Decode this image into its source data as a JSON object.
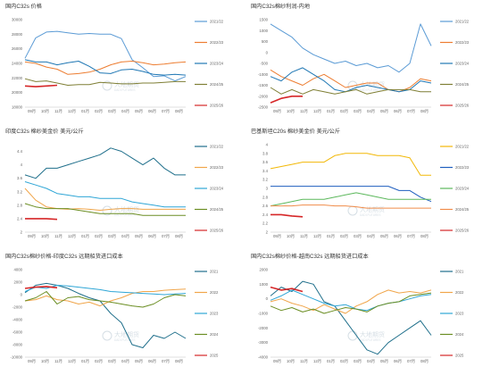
{
  "chart_data": [
    {
      "type": "line",
      "title": "国内C32s  价格",
      "x_ticks": [
        "09月",
        "10月",
        "11月",
        "12月",
        "01月",
        "02月",
        "03月",
        "04月",
        "05月",
        "06月",
        "07月",
        "08月"
      ],
      "ylim": [
        18000,
        30000
      ],
      "y_ticks": [
        "18000",
        "20000",
        "22000",
        "24000",
        "26000",
        "28000",
        "30000"
      ],
      "series": [
        {
          "name": "2021/22",
          "color": "#5b9bd5",
          "values": [
            24700,
            27500,
            28300,
            28400,
            28200,
            28000,
            28100,
            28000,
            28000,
            27400,
            24500,
            23400,
            22200,
            22300,
            21600,
            22200
          ]
        },
        {
          "name": "2022/23",
          "color": "#ed7d31",
          "values": [
            24200,
            24000,
            23500,
            23200,
            22500,
            22600,
            22800,
            23200,
            23800,
            24200,
            24300,
            24100,
            23800,
            23900,
            24100,
            24200
          ]
        },
        {
          "name": "2023/24",
          "color": "#1f77b4",
          "values": [
            24500,
            24200,
            24200,
            23800,
            24100,
            24300,
            23600,
            22700,
            22600,
            23100,
            23200,
            22900,
            22500,
            22400,
            22500,
            22400
          ]
        },
        {
          "name": "2024/25",
          "color": "#7f7f35",
          "values": [
            21900,
            21500,
            21600,
            21300,
            21000,
            21100,
            21100,
            21400,
            21300,
            21200,
            21200,
            21300,
            21300,
            21400,
            21500,
            21500
          ]
        },
        {
          "name": "2025/26",
          "color": "#d62728",
          "values": [
            20900,
            20800,
            20900,
            21000
          ]
        }
      ]
    },
    {
      "type": "line",
      "title": "国内C32s棉纱利润-内地",
      "x_ticks": [
        "09月",
        "10月",
        "11月",
        "12月",
        "01月",
        "02月",
        "03月",
        "04月",
        "05月",
        "06月",
        "07月",
        "08月"
      ],
      "ylim": [
        -2500,
        1500
      ],
      "y_ticks": [
        "-2500",
        "-2000",
        "-1500",
        "-1000",
        "-500",
        "0",
        "500",
        "1000",
        "1500"
      ],
      "series": [
        {
          "name": "2021/22",
          "color": "#5b9bd5",
          "values": [
            1300,
            1000,
            700,
            200,
            -100,
            -300,
            -500,
            -400,
            -600,
            -500,
            -700,
            -600,
            -900,
            -500,
            1300,
            300
          ]
        },
        {
          "name": "2022/23",
          "color": "#ed7d31",
          "values": [
            -800,
            -1100,
            -1300,
            -1500,
            -1200,
            -1000,
            -1300,
            -1600,
            -1500,
            -1400,
            -1400,
            -1700,
            -1800,
            -1600,
            -1200,
            -1300
          ]
        },
        {
          "name": "2023/24",
          "color": "#1f77b4",
          "values": [
            -1100,
            -1300,
            -900,
            -700,
            -1000,
            -1300,
            -1700,
            -1800,
            -1600,
            -1500,
            -1600,
            -1700,
            -1800,
            -1700,
            -1300,
            -1400
          ]
        },
        {
          "name": "2024/25",
          "color": "#7f7f35",
          "values": [
            -1600,
            -1900,
            -1700,
            -1900,
            -1700,
            -1800,
            -1900,
            -1800,
            -1700,
            -1900,
            -1800,
            -1700,
            -1700,
            -1700,
            -1800,
            -1800
          ]
        },
        {
          "name": "2025/26",
          "color": "#d62728",
          "values": [
            -2300,
            -2100,
            -2000,
            -2000
          ]
        }
      ]
    },
    {
      "type": "line",
      "title": "印度C32s  棉纱美金价   美元/公斤",
      "x_ticks": [
        "09月",
        "10月",
        "11月",
        "12月",
        "01月",
        "02月",
        "03月",
        "04月",
        "05月",
        "06月",
        "07月",
        "08月"
      ],
      "ylim": [
        2,
        4.6
      ],
      "y_ticks": [
        "2",
        "2.4",
        "2.8",
        "3.2",
        "3.6",
        "4",
        "4.4"
      ],
      "series": [
        {
          "name": "2021/22",
          "color": "#1f6f8b",
          "values": [
            3.7,
            3.6,
            3.9,
            3.9,
            4.0,
            4.1,
            4.2,
            4.3,
            4.5,
            4.4,
            4.2,
            4.0,
            4.2,
            3.9,
            3.7,
            3.7
          ]
        },
        {
          "name": "2022/23",
          "color": "#f0a54a",
          "values": [
            3.3,
            2.95,
            2.75,
            2.7,
            2.68,
            2.7,
            2.68,
            2.65,
            2.68,
            2.7,
            2.7,
            2.68,
            2.68,
            2.68,
            2.68,
            2.68
          ]
        },
        {
          "name": "2023/24",
          "color": "#2fa6d6",
          "values": [
            3.5,
            3.4,
            3.3,
            3.15,
            3.1,
            3.05,
            3.05,
            3.0,
            3.0,
            3.0,
            2.9,
            2.85,
            2.8,
            2.75,
            2.75,
            2.75
          ]
        },
        {
          "name": "2024/25",
          "color": "#6b8e23",
          "values": [
            2.85,
            2.75,
            2.7,
            2.7,
            2.7,
            2.65,
            2.6,
            2.55,
            2.55,
            2.55,
            2.55,
            2.5,
            2.5,
            2.5,
            2.5,
            2.5
          ]
        },
        {
          "name": "2025/26",
          "color": "#d62728",
          "values": [
            2.4,
            2.4,
            2.4,
            2.38
          ]
        }
      ]
    },
    {
      "type": "line",
      "title": "巴基斯坦C20s 棉纱美金价  美元/公斤",
      "x_ticks": [
        "09月",
        "10月",
        "11月",
        "12月",
        "01月",
        "02月",
        "03月",
        "04月",
        "05月",
        "06月",
        "07月",
        "08月"
      ],
      "ylim": [
        2,
        4
      ],
      "y_ticks": [
        "2",
        "2.2",
        "2.4",
        "2.6",
        "2.8",
        "3",
        "3.2",
        "3.4",
        "3.6",
        "3.8",
        "4"
      ],
      "series": [
        {
          "name": "2021/22",
          "color": "#f2b807",
          "values": [
            3.45,
            3.5,
            3.55,
            3.6,
            3.6,
            3.6,
            3.75,
            3.8,
            3.8,
            3.8,
            3.75,
            3.75,
            3.75,
            3.7,
            3.3,
            3.3
          ]
        },
        {
          "name": "2022/23",
          "color": "#1f5fbf",
          "values": [
            3.05,
            3.05,
            3.05,
            3.05,
            3.05,
            3.05,
            3.05,
            3.05,
            3.05,
            3.05,
            3.05,
            3.05,
            2.95,
            2.95,
            2.8,
            2.7
          ]
        },
        {
          "name": "2023/24",
          "color": "#5cb85c",
          "values": [
            2.6,
            2.65,
            2.7,
            2.75,
            2.75,
            2.75,
            2.8,
            2.85,
            2.9,
            2.85,
            2.8,
            2.75,
            2.75,
            2.75,
            2.75,
            2.75
          ]
        },
        {
          "name": "2024/25",
          "color": "#f08c4a",
          "values": [
            2.6,
            2.6,
            2.6,
            2.62,
            2.62,
            2.62,
            2.6,
            2.6,
            2.58,
            2.55,
            2.55,
            2.55,
            2.55,
            2.55,
            2.55,
            2.55
          ]
        },
        {
          "name": "2025/26",
          "color": "#d62728",
          "values": [
            2.4,
            2.4,
            2.37,
            2.35
          ]
        }
      ]
    },
    {
      "type": "line",
      "title": "国内C32s棉纱价格-印度C32s 远期船货进口成本",
      "x_ticks": [
        "09月",
        "10月",
        "11月",
        "12月",
        "01月",
        "02月",
        "03月",
        "04月",
        "05月",
        "06月",
        "07月",
        "08月"
      ],
      "ylim": [
        -10000,
        4000
      ],
      "y_ticks": [
        "-10000",
        "-8000",
        "-6000",
        "-4000",
        "-2000",
        "0",
        "2000",
        "4000"
      ],
      "series": [
        {
          "name": "2021",
          "color": "#1f6f8b",
          "values": [
            300,
            1500,
            1800,
            1500,
            1000,
            200,
            -500,
            -1000,
            -3000,
            -4500,
            -8000,
            -8500,
            -6500,
            -7000,
            -6000,
            -7000
          ]
        },
        {
          "name": "2022",
          "color": "#f0a54a",
          "values": [
            -1000,
            -800,
            -200,
            -800,
            -1000,
            -1500,
            -1200,
            -1800,
            -1000,
            -500,
            200,
            500,
            500,
            700,
            800,
            900
          ]
        },
        {
          "name": "2023",
          "color": "#2fa6d6",
          "values": [
            500,
            1200,
            1000,
            1500,
            1400,
            1200,
            1000,
            800,
            500,
            400,
            300,
            200,
            100,
            0,
            100,
            200
          ]
        },
        {
          "name": "2024",
          "color": "#6b8e23",
          "values": [
            -1000,
            -500,
            500,
            -1500,
            -500,
            -300,
            -800,
            -1000,
            -1200,
            -1500,
            -1800,
            -2000,
            -1500,
            -500,
            0,
            -200
          ]
        },
        {
          "name": "2025",
          "color": "#d62728",
          "values": [
            1000,
            1200,
            1300,
            1100
          ]
        }
      ]
    },
    {
      "type": "line",
      "title": "国内C32s棉纱价格-越南C32s 远期船货进口成本",
      "x_ticks": [
        "09月",
        "10月",
        "11月",
        "12月",
        "01月",
        "02月",
        "03月",
        "04月",
        "05月",
        "06月",
        "07月",
        "08月"
      ],
      "ylim": [
        -4000,
        2000
      ],
      "y_ticks": [
        "-4000",
        "-3000",
        "-2000",
        "-1000",
        "0",
        "1000",
        "2000"
      ],
      "series": [
        {
          "name": "2021",
          "color": "#1f6f8b",
          "values": [
            200,
            800,
            500,
            1200,
            1000,
            -200,
            -500,
            -1500,
            -2500,
            -3500,
            -3800,
            -3000,
            -2500,
            -2000,
            -1500,
            -2500
          ]
        },
        {
          "name": "2022",
          "color": "#f0a54a",
          "values": [
            -200,
            0,
            -300,
            -500,
            -800,
            -400,
            -700,
            -1000,
            -500,
            -200,
            300,
            600,
            400,
            500,
            400,
            600
          ]
        },
        {
          "name": "2023",
          "color": "#2fa6d6",
          "values": [
            -100,
            200,
            600,
            300,
            0,
            -300,
            -500,
            -400,
            -700,
            -800,
            -500,
            -300,
            -200,
            0,
            200,
            300
          ]
        },
        {
          "name": "2024",
          "color": "#6b8e23",
          "values": [
            -500,
            -800,
            -600,
            -900,
            -700,
            -1000,
            -800,
            -600,
            -700,
            -900,
            -500,
            -300,
            -200,
            200,
            300,
            400
          ]
        },
        {
          "name": "2025",
          "color": "#d62728",
          "values": [
            800,
            600,
            700,
            500
          ]
        }
      ]
    }
  ],
  "watermark": {
    "brand": "大地期货",
    "sub": "DADI FUTURES"
  }
}
